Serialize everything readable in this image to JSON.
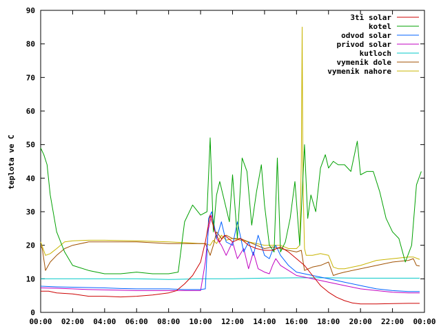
{
  "chart_data": {
    "type": "line",
    "title": "",
    "xlabel": "",
    "ylabel": "teplota ve C",
    "ylim": [
      0,
      90
    ],
    "xlim_hours": [
      0,
      24
    ],
    "grid": false,
    "legend_position": "top-right",
    "x_tick_labels": [
      "00:00",
      "02:00",
      "04:00",
      "06:00",
      "08:00",
      "10:00",
      "12:00",
      "14:00",
      "16:00",
      "18:00",
      "20:00",
      "22:00",
      "00:00"
    ],
    "y_tick_labels": [
      "0",
      "10",
      "20",
      "30",
      "40",
      "50",
      "60",
      "70",
      "80",
      "90"
    ],
    "series": [
      {
        "name": "3ti solar",
        "color": "#cc0000",
        "x": [
          0,
          0.5,
          1,
          2,
          3,
          4,
          5,
          6,
          7,
          8,
          8.5,
          9,
          9.5,
          10,
          10.3,
          10.6,
          10.9,
          11.2,
          11.5,
          12,
          12.5,
          13,
          13.5,
          14,
          14.5,
          15,
          15.5,
          16,
          16.5,
          17,
          17.5,
          18,
          18.5,
          19,
          19.5,
          20,
          21,
          22,
          23,
          23.7
        ],
        "y": [
          6.3,
          6.3,
          5.8,
          5.5,
          4.8,
          4.8,
          4.6,
          4.8,
          5.2,
          5.8,
          6.5,
          8.5,
          11,
          15,
          21,
          29,
          24,
          21,
          23,
          21,
          22,
          20,
          19,
          18.5,
          18.5,
          19.5,
          18,
          16,
          14,
          11,
          8,
          6,
          4.5,
          3.5,
          2.8,
          2.5,
          2.5,
          2.6,
          2.7,
          2.7
        ]
      },
      {
        "name": "kotel",
        "color": "#00a000",
        "x": [
          0,
          0.2,
          0.4,
          0.6,
          1,
          1.5,
          2,
          3,
          4,
          5,
          6,
          7,
          8,
          8.6,
          9,
          9.5,
          10,
          10.4,
          10.6,
          10.8,
          11,
          11.2,
          11.5,
          11.8,
          12,
          12.3,
          12.6,
          12.9,
          13.2,
          13.5,
          13.8,
          14,
          14.3,
          14.6,
          14.8,
          15,
          15.3,
          15.6,
          15.9,
          16.2,
          16.5,
          16.7,
          16.9,
          17.2,
          17.5,
          17.8,
          18,
          18.3,
          18.6,
          19,
          19.4,
          19.8,
          20,
          20.4,
          20.8,
          21.2,
          21.6,
          22,
          22.4,
          22.8,
          23.2,
          23.5,
          23.8
        ],
        "y": [
          49,
          47,
          44,
          35,
          24,
          18,
          14,
          12.5,
          11.5,
          11.5,
          12,
          11.5,
          11.5,
          12,
          27,
          32,
          29,
          30,
          52,
          24,
          35,
          39,
          33,
          27,
          41,
          22,
          46,
          42,
          26,
          36,
          44,
          32,
          20,
          18,
          46,
          18,
          21,
          28,
          39,
          20,
          50,
          28,
          35,
          30,
          43,
          47,
          43,
          45,
          44,
          44,
          42,
          51,
          41,
          42,
          42,
          36,
          28,
          24,
          22,
          15,
          20,
          38,
          42
        ]
      },
      {
        "name": "odvod solar",
        "color": "#0060ff",
        "x": [
          0,
          1,
          2,
          3,
          4,
          5,
          6,
          7,
          8,
          9,
          10,
          10.3,
          10.5,
          10.7,
          11,
          11.3,
          11.6,
          12,
          12.3,
          12.7,
          13,
          13.3,
          13.6,
          14,
          14.3,
          14.5,
          14.7,
          15,
          15.5,
          16,
          17,
          18,
          19,
          20,
          21,
          22,
          23,
          23.7
        ],
        "y": [
          7.8,
          7.6,
          7.5,
          7.4,
          7.3,
          7.1,
          7,
          7,
          7,
          6.8,
          6.8,
          7,
          28,
          30,
          22,
          27,
          21,
          20,
          27,
          18,
          21,
          17,
          23,
          17,
          16,
          18.5,
          20,
          17,
          14,
          12,
          11,
          10,
          9,
          8,
          7,
          6.5,
          6.2,
          6.2
        ]
      },
      {
        "name": "privod solar",
        "color": "#c000c0",
        "x": [
          0,
          1,
          2,
          3,
          4,
          5,
          6,
          7,
          8,
          9,
          10,
          10.3,
          10.5,
          10.7,
          11,
          11.3,
          11.6,
          12,
          12.3,
          12.7,
          13,
          13.3,
          13.6,
          14,
          14.3,
          14.5,
          14.7,
          15,
          15.5,
          16,
          17,
          18,
          19,
          20,
          21,
          22,
          23,
          23.7
        ],
        "y": [
          7.3,
          7.2,
          7,
          6.8,
          6.7,
          6.6,
          6.5,
          6.5,
          6.5,
          6.5,
          6.5,
          15,
          25,
          29,
          22,
          20,
          17,
          21,
          16,
          19,
          13,
          18,
          13,
          12,
          11.5,
          14,
          16,
          14,
          12.5,
          11,
          10,
          9,
          8,
          7,
          6.5,
          6,
          5.8,
          5.8
        ]
      },
      {
        "name": "kutloch",
        "color": "#00c8c8",
        "x": [
          0,
          2,
          4,
          6,
          8,
          10,
          12,
          14,
          16,
          18,
          20,
          22,
          23.7
        ],
        "y": [
          10,
          10,
          10,
          10,
          9.8,
          10,
          10,
          10.2,
          10.3,
          10.3,
          10.2,
          10.2,
          10.2
        ]
      },
      {
        "name": "vymenik dole",
        "color": "#a05000",
        "x": [
          0,
          0.1,
          0.3,
          0.6,
          1,
          1.5,
          2,
          3,
          4,
          6,
          8,
          9,
          10,
          10.3,
          10.6,
          10.8,
          11,
          11.3,
          11.6,
          12,
          12.5,
          13,
          14,
          14.5,
          15,
          15.5,
          16,
          16.3,
          16.5,
          17,
          17.5,
          18,
          18.3,
          18.6,
          19,
          20,
          21,
          22,
          23,
          23.3,
          23.5,
          23.7
        ],
        "y": [
          20,
          19,
          12.5,
          15,
          17,
          19,
          20,
          21,
          21,
          21,
          20.5,
          20.5,
          20.5,
          20.5,
          17,
          20,
          24,
          22,
          23,
          22,
          22,
          21,
          19,
          19.5,
          19,
          18.5,
          18,
          18.5,
          12.5,
          13.5,
          14,
          15,
          11,
          11.5,
          12,
          13,
          14,
          15,
          15.5,
          16,
          14,
          13.8
        ]
      },
      {
        "name": "vymenik nahore",
        "color": "#c8b400",
        "x": [
          0,
          0.3,
          0.6,
          1,
          1.5,
          2,
          3,
          4,
          6,
          8,
          9,
          10,
          10.3,
          10.6,
          10.8,
          11,
          11.3,
          11.6,
          12,
          12.5,
          13,
          14,
          15,
          15.5,
          16,
          16.2,
          16.3,
          16.35,
          16.4,
          16.5,
          16.6,
          16.8,
          17,
          17.5,
          18,
          18.3,
          18.6,
          19,
          20,
          21,
          22,
          23,
          23.3,
          23.7
        ],
        "y": [
          21,
          17,
          17.5,
          19,
          21,
          21.3,
          21.5,
          21.5,
          21.3,
          21,
          20.8,
          20.5,
          20.5,
          20,
          21.5,
          20.5,
          23,
          21.5,
          22,
          21.5,
          21,
          20,
          20,
          19,
          19,
          20,
          45,
          85,
          40,
          19,
          17,
          17,
          17,
          17.5,
          17,
          13.5,
          13,
          13,
          14,
          15.5,
          16,
          16.5,
          16.5,
          15.8
        ]
      }
    ]
  }
}
